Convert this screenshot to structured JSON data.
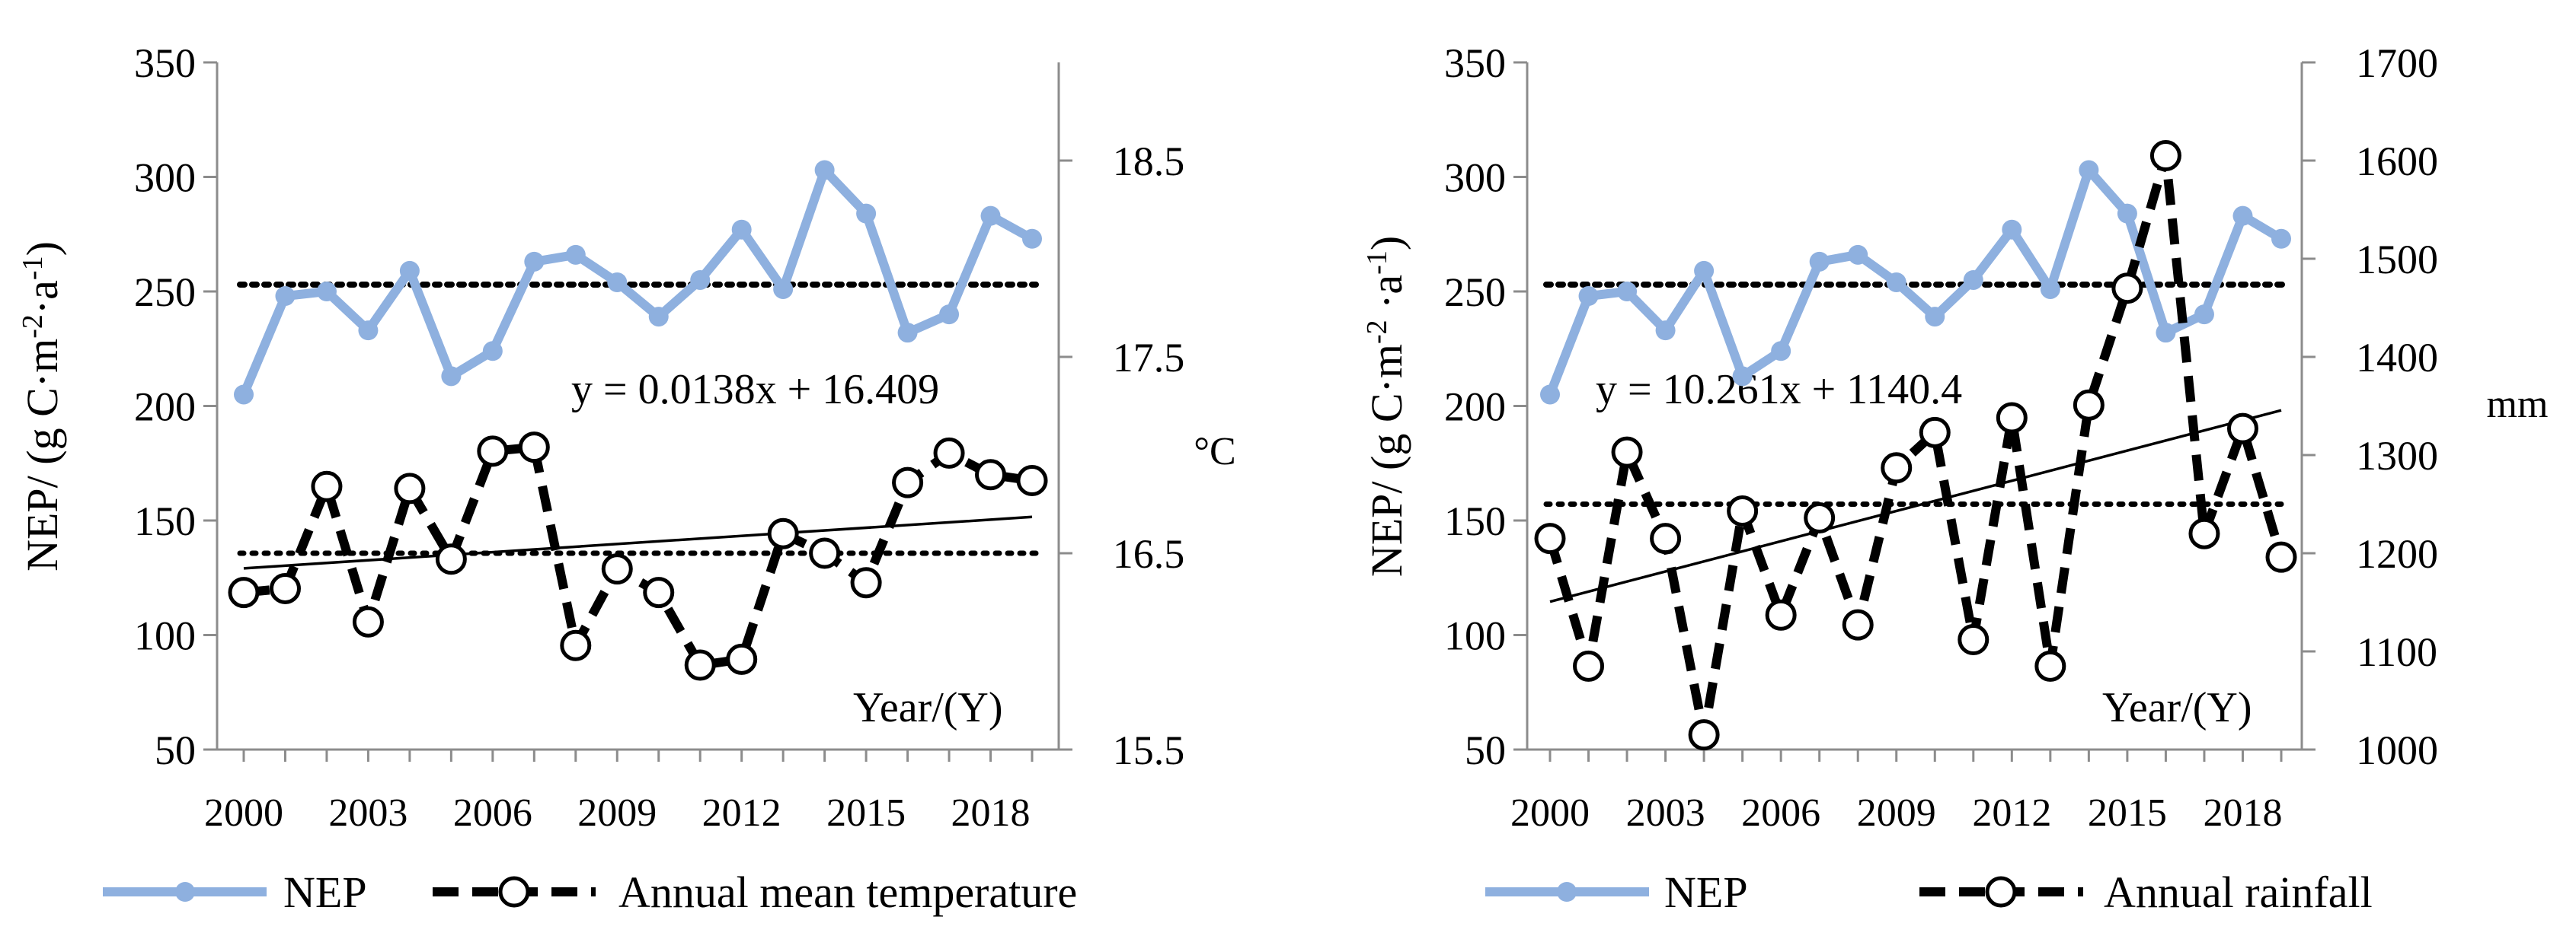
{
  "colors": {
    "nep": "#8eb0df",
    "climate": "#000000",
    "axis": "#8c8c8c"
  },
  "chart_data": [
    {
      "type": "line",
      "x": [
        2000,
        2001,
        2002,
        2003,
        2004,
        2005,
        2006,
        2007,
        2008,
        2009,
        2010,
        2011,
        2012,
        2013,
        2014,
        2015,
        2016,
        2017,
        2018,
        2019
      ],
      "x_tick_labels": [
        "2000",
        "2003",
        "2006",
        "2009",
        "2012",
        "2015",
        "2018"
      ],
      "y_left_label": "NEP/ (g C·m⁻²·a⁻¹)",
      "y_left_ticks": [
        "50",
        "100",
        "150",
        "200",
        "250",
        "300",
        "350"
      ],
      "y_left_range": [
        50,
        350
      ],
      "y_right_label": "°C",
      "y_right_ticks": [
        "15.5",
        "16.5",
        "17.5",
        "18.5"
      ],
      "y_right_range": [
        15.5,
        19.0
      ],
      "x_annotation": "Year/(Y)",
      "series": [
        {
          "name": "NEP",
          "axis": "left",
          "values": [
            205,
            248,
            250,
            233,
            259,
            213,
            224,
            263,
            266,
            254,
            239,
            255,
            277,
            251,
            303,
            284,
            232,
            240,
            283,
            273
          ],
          "mean": 253
        },
        {
          "name": "Annual mean temperature",
          "axis": "right",
          "values": [
            16.3,
            16.32,
            16.84,
            16.15,
            16.83,
            16.47,
            17.02,
            17.04,
            16.03,
            16.42,
            16.3,
            15.93,
            15.96,
            16.6,
            16.5,
            16.35,
            16.86,
            17.01,
            16.9,
            16.87
          ],
          "mean": 16.5,
          "trend": {
            "equation": "y = 0.0138x + 16.409",
            "slope": 0.0138,
            "intercept": 16.409
          }
        }
      ],
      "legend": [
        "NEP",
        "Annual mean temperature"
      ]
    },
    {
      "type": "line",
      "x": [
        2000,
        2001,
        2002,
        2003,
        2004,
        2005,
        2006,
        2007,
        2008,
        2009,
        2010,
        2011,
        2012,
        2013,
        2014,
        2015,
        2016,
        2017,
        2018,
        2019
      ],
      "x_tick_labels": [
        "2000",
        "2003",
        "2006",
        "2009",
        "2012",
        "2015",
        "2018"
      ],
      "y_left_label": "NEP/ (g C·m⁻²·a⁻¹)",
      "y_left_ticks": [
        "50",
        "100",
        "150",
        "200",
        "250",
        "300",
        "350"
      ],
      "y_left_range": [
        50,
        350
      ],
      "y_right_label": "mm",
      "y_right_ticks": [
        "1000",
        "1100",
        "1200",
        "1300",
        "1400",
        "1500",
        "1600",
        "1700"
      ],
      "y_right_range": [
        1000,
        1700
      ],
      "x_annotation": "Year/(Y)",
      "series": [
        {
          "name": "NEP",
          "axis": "left",
          "values": [
            205,
            248,
            250,
            233,
            259,
            213,
            224,
            263,
            266,
            254,
            239,
            255,
            277,
            251,
            303,
            284,
            232,
            240,
            283,
            273
          ],
          "mean": 253
        },
        {
          "name": "Annual rainfall",
          "axis": "right",
          "values": [
            1215,
            1085,
            1303,
            1215,
            1015,
            1243,
            1137,
            1236,
            1127,
            1287,
            1323,
            1112,
            1338,
            1085,
            1351,
            1470,
            1605,
            1220,
            1327,
            1196
          ],
          "mean": 1250,
          "trend": {
            "equation": "y = 10.261x + 1140.4",
            "slope": 10.261,
            "intercept": 1140.4
          }
        }
      ],
      "legend": [
        "NEP",
        "Annual rainfall"
      ]
    }
  ]
}
